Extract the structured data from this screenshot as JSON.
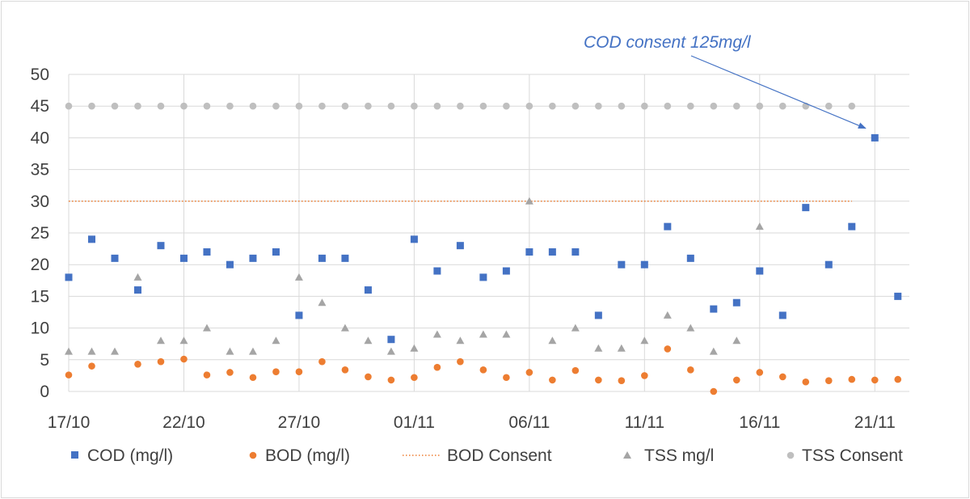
{
  "chart_data": {
    "type": "scatter",
    "title": "",
    "xlabel": "",
    "ylabel": "",
    "x_start": "17/10",
    "x_day_range": [
      0,
      36.5
    ],
    "ylim": [
      0,
      50
    ],
    "yticks": [
      0,
      5,
      10,
      15,
      20,
      25,
      30,
      35,
      40,
      45,
      50
    ],
    "xticks": [
      {
        "label": "17/10",
        "day": 0
      },
      {
        "label": "22/10",
        "day": 5
      },
      {
        "label": "27/10",
        "day": 10
      },
      {
        "label": "01/11",
        "day": 15
      },
      {
        "label": "06/11",
        "day": 20
      },
      {
        "label": "11/11",
        "day": 25
      },
      {
        "label": "16/11",
        "day": 30
      },
      {
        "label": "21/11",
        "day": 35
      }
    ],
    "grid": "vertical-and-horizontal",
    "legend_position": "bottom",
    "series": [
      {
        "name": "COD (mg/l)",
        "marker": "square",
        "color": "#4472c4",
        "points": [
          [
            0,
            18
          ],
          [
            1,
            24
          ],
          [
            2,
            21
          ],
          [
            3,
            16
          ],
          [
            4,
            23
          ],
          [
            5,
            21
          ],
          [
            6,
            22
          ],
          [
            7,
            20
          ],
          [
            8,
            21
          ],
          [
            9,
            22
          ],
          [
            10,
            12
          ],
          [
            11,
            21
          ],
          [
            12,
            21
          ],
          [
            13,
            16
          ],
          [
            14,
            8.2
          ],
          [
            15,
            24
          ],
          [
            16,
            19
          ],
          [
            17,
            23
          ],
          [
            18,
            18
          ],
          [
            19,
            19
          ],
          [
            20,
            22
          ],
          [
            21,
            22
          ],
          [
            22,
            22
          ],
          [
            23,
            12
          ],
          [
            24,
            20
          ],
          [
            25,
            20
          ],
          [
            26,
            26
          ],
          [
            27,
            21
          ],
          [
            28,
            13
          ],
          [
            29,
            14
          ],
          [
            30,
            19
          ],
          [
            31,
            12
          ],
          [
            32,
            29
          ],
          [
            33,
            20
          ],
          [
            34,
            26
          ],
          [
            35,
            40
          ],
          [
            36,
            15
          ]
        ]
      },
      {
        "name": "BOD (mg/l)",
        "marker": "circle",
        "color": "#ed7d31",
        "points": [
          [
            0,
            2.6
          ],
          [
            1,
            4.0
          ],
          [
            3,
            4.3
          ],
          [
            4,
            4.7
          ],
          [
            5,
            5.1
          ],
          [
            6,
            2.6
          ],
          [
            7,
            3.0
          ],
          [
            8,
            2.2
          ],
          [
            9,
            3.1
          ],
          [
            10,
            3.1
          ],
          [
            11,
            4.7
          ],
          [
            12,
            3.4
          ],
          [
            13,
            2.3
          ],
          [
            14,
            1.8
          ],
          [
            15,
            2.2
          ],
          [
            16,
            3.8
          ],
          [
            17,
            4.7
          ],
          [
            18,
            3.4
          ],
          [
            19,
            2.2
          ],
          [
            20,
            3.0
          ],
          [
            21,
            1.8
          ],
          [
            22,
            3.3
          ],
          [
            23,
            1.8
          ],
          [
            24,
            1.7
          ],
          [
            25,
            2.5
          ],
          [
            26,
            6.7
          ],
          [
            27,
            3.4
          ],
          [
            28,
            0
          ],
          [
            29,
            1.8
          ],
          [
            30,
            3.0
          ],
          [
            31,
            2.3
          ],
          [
            32,
            1.5
          ],
          [
            33,
            1.7
          ],
          [
            34,
            1.9
          ],
          [
            35,
            1.8
          ],
          [
            36,
            1.9
          ]
        ]
      },
      {
        "name": "BOD Consent",
        "marker": "dotted-line",
        "color": "#ed7d31",
        "points": [
          [
            0,
            30
          ],
          [
            34,
            30
          ]
        ]
      },
      {
        "name": "TSS mg/l",
        "marker": "triangle",
        "color": "#a5a5a5",
        "points": [
          [
            0,
            6.3
          ],
          [
            1,
            6.3
          ],
          [
            2,
            6.3
          ],
          [
            3,
            18
          ],
          [
            4,
            8
          ],
          [
            5,
            8
          ],
          [
            6,
            10
          ],
          [
            7,
            6.3
          ],
          [
            8,
            6.3
          ],
          [
            9,
            8
          ],
          [
            10,
            18
          ],
          [
            11,
            14
          ],
          [
            12,
            10
          ],
          [
            13,
            8
          ],
          [
            14,
            6.3
          ],
          [
            15,
            6.8
          ],
          [
            16,
            9
          ],
          [
            17,
            8
          ],
          [
            18,
            9
          ],
          [
            19,
            9
          ],
          [
            20,
            30
          ],
          [
            21,
            8
          ],
          [
            22,
            10
          ],
          [
            23,
            6.8
          ],
          [
            24,
            6.8
          ],
          [
            25,
            8
          ],
          [
            26,
            12
          ],
          [
            27,
            10
          ],
          [
            28,
            6.3
          ],
          [
            29,
            8
          ],
          [
            30,
            26
          ]
        ]
      },
      {
        "name": "TSS Consent",
        "marker": "circle",
        "color": "#bfbfbf",
        "points": [
          [
            0,
            45
          ],
          [
            1,
            45
          ],
          [
            2,
            45
          ],
          [
            3,
            45
          ],
          [
            4,
            45
          ],
          [
            5,
            45
          ],
          [
            6,
            45
          ],
          [
            7,
            45
          ],
          [
            8,
            45
          ],
          [
            9,
            45
          ],
          [
            10,
            45
          ],
          [
            11,
            45
          ],
          [
            12,
            45
          ],
          [
            13,
            45
          ],
          [
            14,
            45
          ],
          [
            15,
            45
          ],
          [
            16,
            45
          ],
          [
            17,
            45
          ],
          [
            18,
            45
          ],
          [
            19,
            45
          ],
          [
            20,
            45
          ],
          [
            21,
            45
          ],
          [
            22,
            45
          ],
          [
            23,
            45
          ],
          [
            24,
            45
          ],
          [
            25,
            45
          ],
          [
            26,
            45
          ],
          [
            27,
            45
          ],
          [
            28,
            45
          ],
          [
            29,
            45
          ],
          [
            30,
            45
          ],
          [
            31,
            45
          ],
          [
            32,
            45
          ],
          [
            33,
            45
          ],
          [
            34,
            45
          ]
        ]
      }
    ],
    "annotations": [
      {
        "text": "COD consent 125mg/l",
        "color": "#4472c4",
        "arrow_to": [
          34.6,
          41.5
        ]
      }
    ]
  }
}
